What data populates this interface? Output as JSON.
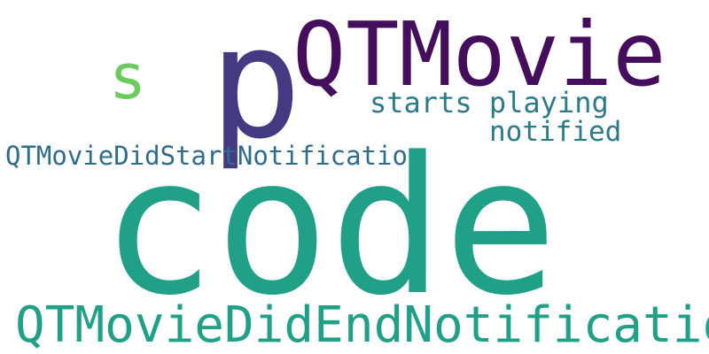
{
  "words": [
    {
      "id": "code",
      "text": "code",
      "color": "#21A088"
    },
    {
      "id": "qtmovie",
      "text": "QTMovie",
      "color": "#440E5C"
    },
    {
      "id": "p",
      "text": "p",
      "color": "#433A82"
    },
    {
      "id": "qtmoviedidendnotification",
      "text": "QTMovieDidEndNotification",
      "color": "#21A088"
    },
    {
      "id": "qtmoviedidstartnotification",
      "text": "QTMovieDidStartNotification",
      "color": "#2E6C8D"
    },
    {
      "id": "starts-playing",
      "text": "starts playing",
      "color": "#2B7A8A"
    },
    {
      "id": "notified",
      "text": "notified",
      "color": "#2B7A8A"
    },
    {
      "id": "s",
      "text": "s",
      "color": "#6CCB5F"
    }
  ]
}
